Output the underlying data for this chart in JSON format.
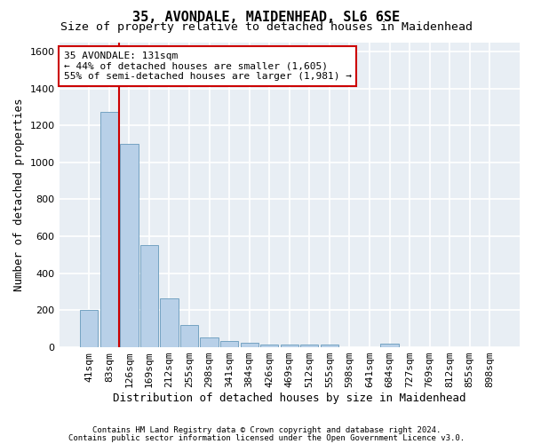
{
  "title": "35, AVONDALE, MAIDENHEAD, SL6 6SE",
  "subtitle": "Size of property relative to detached houses in Maidenhead",
  "xlabel": "Distribution of detached houses by size in Maidenhead",
  "ylabel": "Number of detached properties",
  "footer_line1": "Contains HM Land Registry data © Crown copyright and database right 2024.",
  "footer_line2": "Contains public sector information licensed under the Open Government Licence v3.0.",
  "bar_labels": [
    "41sqm",
    "83sqm",
    "126sqm",
    "169sqm",
    "212sqm",
    "255sqm",
    "298sqm",
    "341sqm",
    "384sqm",
    "426sqm",
    "469sqm",
    "512sqm",
    "555sqm",
    "598sqm",
    "641sqm",
    "684sqm",
    "727sqm",
    "769sqm",
    "812sqm",
    "855sqm",
    "898sqm"
  ],
  "bar_values": [
    200,
    1275,
    1100,
    555,
    265,
    120,
    55,
    35,
    25,
    15,
    15,
    15,
    15,
    0,
    0,
    20,
    0,
    0,
    0,
    0,
    0
  ],
  "bar_color": "#b8d0e8",
  "bar_edge_color": "#6699bb",
  "annotation_text": "35 AVONDALE: 131sqm\n← 44% of detached houses are smaller (1,605)\n55% of semi-detached houses are larger (1,981) →",
  "vline_x": 1.5,
  "vline_color": "#cc0000",
  "box_color": "#cc0000",
  "ylim": [
    0,
    1650
  ],
  "yticks": [
    0,
    200,
    400,
    600,
    800,
    1000,
    1200,
    1400,
    1600
  ],
  "plot_bg_color": "#e8eef4",
  "fig_bg_color": "#ffffff",
  "grid_color": "#ffffff",
  "title_fontsize": 11,
  "subtitle_fontsize": 9.5,
  "axis_label_fontsize": 9,
  "tick_fontsize": 8,
  "annotation_fontsize": 8,
  "footer_fontsize": 6.5
}
